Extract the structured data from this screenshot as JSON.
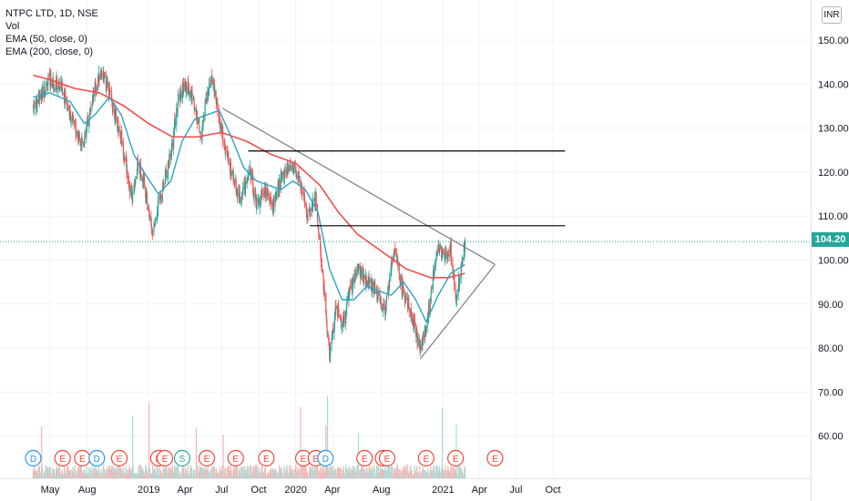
{
  "legend": {
    "title": "NTPC LTD, 1D, NSE",
    "vol": "Vol",
    "ema50": "EMA (50, close, 0)",
    "ema200": "EMA (200, close, 0)"
  },
  "currency": "INR",
  "last_price": "104.20",
  "colors": {
    "up": "#26a69a",
    "down": "#ef5350",
    "ema50": "#2ca3c3",
    "ema200": "#ef4f4f",
    "trendline": "#787b86",
    "hline": "#000000",
    "event_earnings": "#f44336",
    "event_dividend": "#2196f3",
    "event_split": "#26a69a"
  },
  "chart_data": {
    "type": "candlestick",
    "y_ticks": [
      "150.00",
      "140.00",
      "130.00",
      "120.00",
      "110.00",
      "100.00",
      "90.00",
      "80.00",
      "70.00",
      "60.00"
    ],
    "y_tick_values": [
      150,
      140,
      130,
      120,
      110,
      100,
      90,
      80,
      70,
      60
    ],
    "ylim": [
      50,
      155
    ],
    "x_ticks": [
      "May",
      "Aug",
      "2019",
      "Apr",
      "Jul",
      "Oct",
      "2020",
      "Apr",
      "Aug",
      "2021",
      "Apr",
      "Jul",
      "Oct"
    ],
    "x_tick_dates": [
      "2018-05-01",
      "2018-08-01",
      "2019-01-01",
      "2019-04-01",
      "2019-07-01",
      "2019-10-01",
      "2020-01-01",
      "2020-04-01",
      "2020-08-01",
      "2021-01-01",
      "2021-04-01",
      "2021-07-01",
      "2021-10-01"
    ],
    "price_anchors": [
      [
        "2018-03-20",
        135
      ],
      [
        "2018-04-05",
        137
      ],
      [
        "2018-05-01",
        141
      ],
      [
        "2018-06-01",
        139
      ],
      [
        "2018-06-20",
        133
      ],
      [
        "2018-07-10",
        128
      ],
      [
        "2018-07-25",
        127
      ],
      [
        "2018-08-15",
        137
      ],
      [
        "2018-09-05",
        143
      ],
      [
        "2018-09-25",
        138
      ],
      [
        "2018-10-25",
        128
      ],
      [
        "2018-11-20",
        114
      ],
      [
        "2018-12-05",
        122
      ],
      [
        "2018-12-20",
        118
      ],
      [
        "2019-01-10",
        106
      ],
      [
        "2019-01-25",
        113
      ],
      [
        "2019-02-20",
        122
      ],
      [
        "2019-03-15",
        136
      ],
      [
        "2019-04-01",
        140
      ],
      [
        "2019-04-20",
        137
      ],
      [
        "2019-05-10",
        128
      ],
      [
        "2019-05-25",
        137
      ],
      [
        "2019-06-08",
        141
      ],
      [
        "2019-06-25",
        132
      ],
      [
        "2019-07-10",
        125
      ],
      [
        "2019-07-25",
        120
      ],
      [
        "2019-08-15",
        114
      ],
      [
        "2019-09-10",
        120
      ],
      [
        "2019-09-25",
        113
      ],
      [
        "2019-10-20",
        116
      ],
      [
        "2019-11-05",
        112
      ],
      [
        "2019-11-25",
        118
      ],
      [
        "2019-12-20",
        122
      ],
      [
        "2020-01-10",
        119
      ],
      [
        "2020-01-30",
        110
      ],
      [
        "2020-02-20",
        114
      ],
      [
        "2020-03-05",
        100
      ],
      [
        "2020-03-25",
        78
      ],
      [
        "2020-04-10",
        90
      ],
      [
        "2020-04-25",
        85
      ],
      [
        "2020-05-15",
        93
      ],
      [
        "2020-06-05",
        98
      ],
      [
        "2020-06-25",
        95
      ],
      [
        "2020-07-15",
        94
      ],
      [
        "2020-07-30",
        90
      ],
      [
        "2020-08-10",
        88
      ],
      [
        "2020-08-25",
        99
      ],
      [
        "2020-09-05",
        102
      ],
      [
        "2020-09-20",
        94
      ],
      [
        "2020-10-05",
        90
      ],
      [
        "2020-10-20",
        86
      ],
      [
        "2020-11-05",
        80
      ],
      [
        "2020-11-20",
        84
      ],
      [
        "2020-12-05",
        95
      ],
      [
        "2020-12-20",
        103
      ],
      [
        "2021-01-05",
        100
      ],
      [
        "2021-01-20",
        103
      ],
      [
        "2021-02-01",
        91
      ],
      [
        "2021-02-15",
        98
      ],
      [
        "2021-02-25",
        104.2
      ]
    ],
    "ema50_anchors": [
      [
        "2018-03-20",
        137
      ],
      [
        "2018-05-01",
        138
      ],
      [
        "2018-06-20",
        136
      ],
      [
        "2018-07-25",
        131
      ],
      [
        "2018-08-20",
        133
      ],
      [
        "2018-09-25",
        137
      ],
      [
        "2018-10-25",
        133
      ],
      [
        "2018-11-25",
        124
      ],
      [
        "2018-12-20",
        120
      ],
      [
        "2019-01-25",
        115
      ],
      [
        "2019-02-25",
        118
      ],
      [
        "2019-03-25",
        127
      ],
      [
        "2019-04-25",
        132
      ],
      [
        "2019-05-25",
        133
      ],
      [
        "2019-06-25",
        134
      ],
      [
        "2019-07-25",
        128
      ],
      [
        "2019-08-25",
        121
      ],
      [
        "2019-09-25",
        118
      ],
      [
        "2019-10-25",
        117
      ],
      [
        "2019-11-25",
        116
      ],
      [
        "2019-12-25",
        118
      ],
      [
        "2020-01-25",
        116
      ],
      [
        "2020-02-25",
        111
      ],
      [
        "2020-03-25",
        98
      ],
      [
        "2020-04-25",
        91
      ],
      [
        "2020-05-25",
        91
      ],
      [
        "2020-06-25",
        94
      ],
      [
        "2020-07-25",
        93
      ],
      [
        "2020-08-25",
        92
      ],
      [
        "2020-09-25",
        95
      ],
      [
        "2020-10-25",
        91
      ],
      [
        "2020-11-20",
        86
      ],
      [
        "2020-12-20",
        92
      ],
      [
        "2021-01-20",
        97
      ],
      [
        "2021-02-25",
        99
      ]
    ],
    "ema200_anchors": [
      [
        "2018-03-20",
        142
      ],
      [
        "2018-05-01",
        141
      ],
      [
        "2018-07-01",
        139
      ],
      [
        "2018-09-01",
        138
      ],
      [
        "2018-11-01",
        135
      ],
      [
        "2019-01-01",
        131
      ],
      [
        "2019-03-01",
        128
      ],
      [
        "2019-05-01",
        128
      ],
      [
        "2019-07-01",
        129
      ],
      [
        "2019-09-01",
        127
      ],
      [
        "2019-11-01",
        124
      ],
      [
        "2020-01-01",
        122
      ],
      [
        "2020-03-01",
        117
      ],
      [
        "2020-04-15",
        111
      ],
      [
        "2020-06-01",
        106
      ],
      [
        "2020-08-01",
        102
      ],
      [
        "2020-10-01",
        98
      ],
      [
        "2020-12-01",
        96
      ],
      [
        "2021-01-15",
        96
      ],
      [
        "2021-02-25",
        97
      ]
    ],
    "trendlines": [
      [
        [
          "2019-07-03",
          134.5
        ],
        [
          "2021-05-10",
          99
        ]
      ],
      [
        [
          "2020-11-05",
          77.5
        ],
        [
          "2021-05-10",
          99
        ]
      ]
    ],
    "horizontal_lines": [
      [
        [
          "2019-09-05",
          124.8
        ],
        [
          "2021-10-31",
          124.8
        ]
      ],
      [
        [
          "2020-02-05",
          107.8
        ],
        [
          "2021-10-31",
          107.8
        ]
      ]
    ],
    "events": [
      {
        "date": "2018-03-20",
        "type": "D"
      },
      {
        "date": "2018-06-01",
        "type": "E"
      },
      {
        "date": "2018-07-20",
        "type": "E"
      },
      {
        "date": "2018-08-25",
        "type": "D"
      },
      {
        "date": "2018-10-20",
        "type": "E"
      },
      {
        "date": "2019-01-25",
        "type": "E"
      },
      {
        "date": "2019-02-10",
        "type": "E"
      },
      {
        "date": "2019-03-25",
        "type": "S"
      },
      {
        "date": "2019-05-25",
        "type": "E"
      },
      {
        "date": "2019-08-05",
        "type": "E"
      },
      {
        "date": "2019-10-20",
        "type": "E"
      },
      {
        "date": "2020-01-20",
        "type": "E"
      },
      {
        "date": "2020-02-20",
        "type": "E"
      },
      {
        "date": "2020-03-15",
        "type": "D"
      },
      {
        "date": "2020-06-20",
        "type": "E"
      },
      {
        "date": "2020-08-05",
        "type": "E"
      },
      {
        "date": "2020-08-15",
        "type": "E"
      },
      {
        "date": "2020-11-20",
        "type": "E"
      },
      {
        "date": "2021-02-01",
        "type": "E"
      },
      {
        "date": "2021-05-10",
        "type": "E"
      }
    ],
    "last_price": 104.2
  }
}
